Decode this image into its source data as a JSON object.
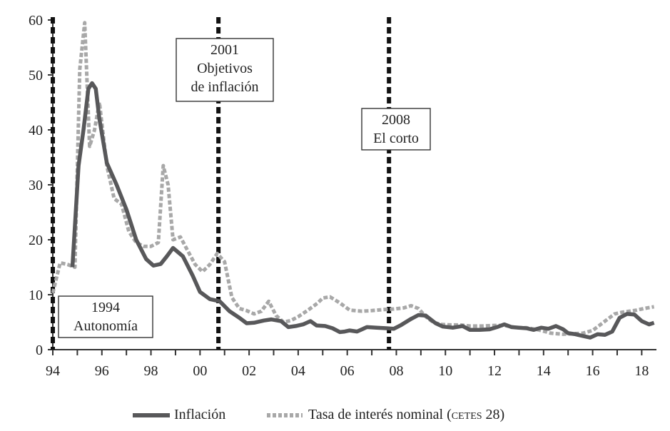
{
  "chart_data": {
    "type": "line",
    "title": "",
    "xlabel": "",
    "ylabel": "",
    "xlim": [
      1994.0,
      2018.6
    ],
    "ylim": [
      0,
      60
    ],
    "x_ticks": [
      1994,
      1996,
      1998,
      2000,
      2002,
      2004,
      2006,
      2008,
      2010,
      2012,
      2014,
      2016,
      2018
    ],
    "x_tick_labels": [
      "94",
      "96",
      "98",
      "00",
      "02",
      "04",
      "06",
      "08",
      "10",
      "12",
      "14",
      "16",
      "18"
    ],
    "y_ticks": [
      0,
      10,
      20,
      30,
      40,
      50,
      60
    ],
    "y_tick_labels": [
      "0",
      "10",
      "20",
      "30",
      "40",
      "50",
      "60"
    ],
    "grid": false,
    "legend_position": "bottom",
    "colors": {
      "inflacion": "#58585a",
      "cetes": "#a8a8a8",
      "marker": "#111111",
      "axis": "#333333"
    },
    "series": [
      {
        "name": "Inflación",
        "style": "solid",
        "x": [
          1994.8,
          1995.05,
          1995.25,
          1995.45,
          1995.6,
          1995.75,
          1995.9,
          1996.2,
          1996.6,
          1997.0,
          1997.4,
          1997.8,
          1998.1,
          1998.4,
          1998.65,
          1998.9,
          1999.3,
          1999.7,
          2000.0,
          2000.4,
          2000.8,
          2001.2,
          2001.6,
          2001.9,
          2002.2,
          2002.6,
          2002.9,
          2003.3,
          2003.6,
          2003.9,
          2004.2,
          2004.5,
          2004.75,
          2005.1,
          2005.4,
          2005.7,
          2005.9,
          2006.1,
          2006.4,
          2006.8,
          2007.2,
          2007.6,
          2007.9,
          2008.2,
          2008.6,
          2008.9,
          2009.2,
          2009.6,
          2009.9,
          2010.3,
          2010.7,
          2011.0,
          2011.4,
          2011.8,
          2012.1,
          2012.4,
          2012.7,
          2013.0,
          2013.3,
          2013.6,
          2013.9,
          2014.2,
          2014.5,
          2014.8,
          2015.0,
          2015.3,
          2015.6,
          2015.9,
          2016.2,
          2016.5,
          2016.8,
          2017.1,
          2017.4,
          2017.7,
          2018.0,
          2018.3,
          2018.5
        ],
        "values": [
          15.0,
          33.5,
          40.0,
          47.5,
          48.5,
          47.5,
          42.0,
          34.0,
          30.0,
          25.5,
          20.0,
          16.5,
          15.3,
          15.6,
          17.0,
          18.5,
          17.0,
          13.5,
          10.5,
          9.2,
          8.8,
          7.0,
          5.8,
          4.8,
          4.9,
          5.3,
          5.5,
          5.2,
          4.1,
          4.3,
          4.6,
          5.2,
          4.4,
          4.3,
          3.9,
          3.2,
          3.3,
          3.5,
          3.3,
          4.1,
          4.0,
          3.9,
          3.8,
          4.5,
          5.6,
          6.3,
          6.2,
          4.8,
          4.2,
          4.0,
          4.3,
          3.6,
          3.6,
          3.7,
          4.1,
          4.6,
          4.1,
          4.0,
          3.9,
          3.6,
          4.0,
          3.8,
          4.3,
          3.7,
          3.0,
          2.8,
          2.5,
          2.2,
          2.8,
          2.7,
          3.3,
          5.8,
          6.5,
          6.4,
          5.2,
          4.6,
          4.9
        ]
      },
      {
        "name": "Tasa de interés nominal (CETES 28)",
        "style": "dotted",
        "x": [
          1994.0,
          1994.3,
          1994.6,
          1994.9,
          1995.1,
          1995.3,
          1995.5,
          1995.7,
          1995.9,
          1996.2,
          1996.5,
          1996.8,
          1997.1,
          1997.4,
          1997.7,
          1998.0,
          1998.3,
          1998.5,
          1998.7,
          1998.9,
          1999.2,
          1999.5,
          1999.8,
          2000.1,
          2000.4,
          2000.7,
          2001.0,
          2001.3,
          2001.6,
          2001.9,
          2002.2,
          2002.5,
          2002.8,
          2003.1,
          2003.4,
          2003.7,
          2004.0,
          2004.4,
          2004.8,
          2005.0,
          2005.3,
          2005.7,
          2006.1,
          2006.6,
          2007.0,
          2007.5,
          2007.9,
          2008.3,
          2008.6,
          2008.9,
          2009.2,
          2009.5,
          2009.8,
          2010.2,
          2010.6,
          2011.0,
          2011.5,
          2012.0,
          2012.4,
          2012.9,
          2013.3,
          2013.8,
          2014.3,
          2014.8,
          2015.2,
          2015.6,
          2016.0,
          2016.3,
          2016.6,
          2016.9,
          2017.2,
          2017.5,
          2017.8,
          2018.1,
          2018.5
        ],
        "values": [
          10.3,
          15.8,
          15.5,
          15.0,
          51.0,
          59.5,
          37.0,
          40.0,
          45.0,
          33.5,
          27.5,
          26.5,
          21.5,
          19.5,
          18.8,
          18.8,
          19.5,
          33.5,
          30.0,
          20.0,
          20.5,
          18.0,
          15.5,
          14.2,
          15.5,
          17.5,
          16.0,
          9.5,
          7.5,
          7.1,
          6.5,
          7.0,
          8.8,
          6.2,
          5.0,
          5.3,
          6.0,
          7.2,
          8.5,
          9.4,
          9.6,
          8.5,
          7.2,
          7.0,
          7.1,
          7.3,
          7.4,
          7.6,
          8.0,
          7.5,
          6.0,
          5.0,
          4.6,
          4.5,
          4.5,
          4.3,
          4.3,
          4.4,
          4.4,
          4.0,
          4.0,
          3.6,
          3.0,
          2.8,
          2.9,
          3.0,
          3.5,
          4.5,
          5.5,
          6.5,
          6.8,
          7.0,
          7.2,
          7.5,
          7.8
        ]
      }
    ],
    "vertical_markers": [
      {
        "x": 1994.0,
        "label_lines": [
          "1994",
          "Autonomía"
        ]
      },
      {
        "x": 2000.75,
        "label_lines": [
          "2001",
          "Objetivos",
          "de inflación"
        ]
      },
      {
        "x": 2007.7,
        "label_lines": [
          "2008",
          "El corto"
        ]
      }
    ]
  },
  "legend": {
    "items": [
      {
        "label": "Inflación"
      },
      {
        "label_main": "Tasa de interés nominal (",
        "label_caps": "cetes",
        "label_tail": " 28)"
      }
    ]
  }
}
